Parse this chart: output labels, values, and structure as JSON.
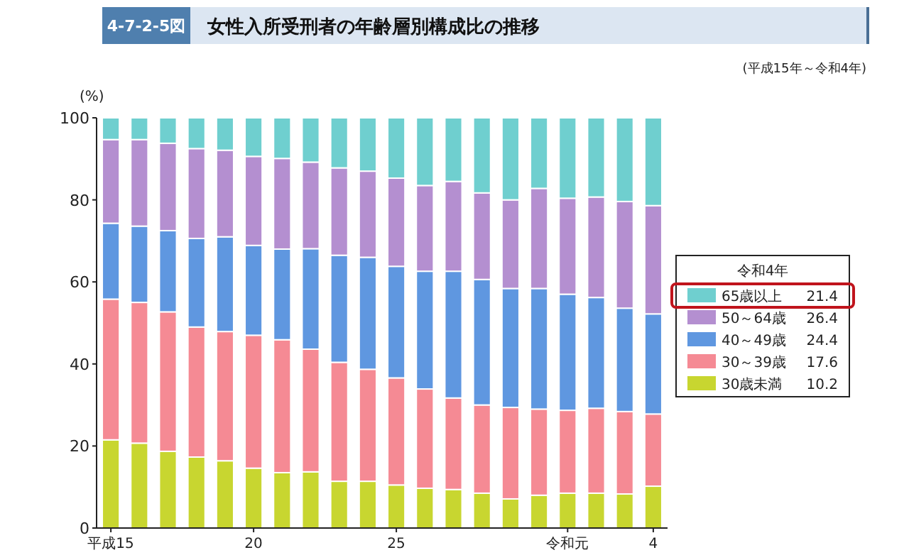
{
  "chart_data": {
    "type": "bar",
    "stacked": true,
    "title": "女性入所受刑者の年齢層別構成比の推移",
    "subtitle": "(平成15年～令和4年)",
    "ylabel": "(%)",
    "legend_title": "令和4年",
    "legend": "right",
    "ylim": [
      0,
      100
    ],
    "yticks": [
      0,
      20,
      40,
      60,
      80,
      100
    ],
    "categories": [
      "平成15",
      null,
      null,
      null,
      null,
      "20",
      null,
      null,
      null,
      null,
      "25",
      null,
      null,
      null,
      null,
      null,
      "令和元",
      null,
      null,
      "4"
    ],
    "series": [
      {
        "name": "30歳未満",
        "color": "#c8d630",
        "values": [
          21.5,
          20.7,
          18.7,
          17.3,
          16.4,
          14.6,
          13.5,
          13.7,
          11.4,
          11.4,
          10.5,
          9.7,
          9.4,
          8.5,
          7.1,
          8.0,
          8.5,
          8.5,
          8.3,
          10.2
        ]
      },
      {
        "name": "30～39歳",
        "color": "#f58a94",
        "values": [
          34.3,
          34.3,
          34.0,
          31.7,
          31.5,
          32.4,
          32.4,
          29.9,
          29.0,
          27.3,
          26.1,
          24.2,
          22.3,
          21.5,
          22.3,
          21.0,
          20.2,
          20.7,
          20.1,
          17.6
        ]
      },
      {
        "name": "40～49歳",
        "color": "#5f97e0",
        "values": [
          18.5,
          18.6,
          19.8,
          21.6,
          23.1,
          21.9,
          22.1,
          24.5,
          26.1,
          27.3,
          27.2,
          28.7,
          30.9,
          30.6,
          29.0,
          29.4,
          28.3,
          27.0,
          25.2,
          24.4
        ]
      },
      {
        "name": "50～64歳",
        "color": "#b48fd0",
        "values": [
          20.4,
          21.1,
          21.3,
          21.9,
          21.1,
          21.7,
          22.1,
          21.1,
          21.3,
          21.0,
          21.5,
          20.9,
          21.9,
          21.1,
          21.6,
          24.4,
          23.4,
          24.5,
          26.0,
          26.4
        ]
      },
      {
        "name": "65歳以上",
        "color": "#6fcfcf",
        "values": [
          5.3,
          5.3,
          6.2,
          7.5,
          7.9,
          9.4,
          9.9,
          10.8,
          12.2,
          13.0,
          14.7,
          16.5,
          15.5,
          18.3,
          20.0,
          17.2,
          19.6,
          19.3,
          20.4,
          21.4
        ]
      }
    ],
    "annotations": [
      "4-7-2-5図",
      "10.2",
      "17.6",
      "24.4",
      "26.4",
      "21.4"
    ]
  }
}
